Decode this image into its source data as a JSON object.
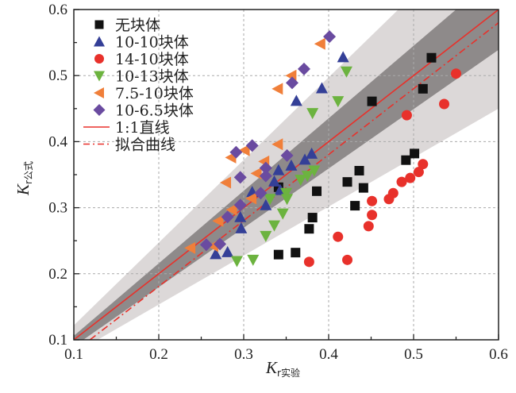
{
  "chart_data": {
    "type": "scatter",
    "title": "",
    "xlabel": "K",
    "xlabel_sub": "r实验",
    "ylabel": "K",
    "ylabel_sub": "r公式",
    "xlim": [
      0.1,
      0.6
    ],
    "ylim": [
      0.1,
      0.6
    ],
    "xticks": [
      "0.1",
      "0.2",
      "0.3",
      "0.4",
      "0.5",
      "0.6"
    ],
    "yticks": [
      "0.1",
      "0.2",
      "0.3",
      "0.4",
      "0.5",
      "0.6"
    ],
    "xtick_values": [
      0.1,
      0.2,
      0.3,
      0.4,
      0.5,
      0.6
    ],
    "ytick_values": [
      0.1,
      0.2,
      0.3,
      0.4,
      0.5,
      0.6
    ],
    "minor_tick_step": 0.05,
    "grid": true,
    "legend_position": "top-left",
    "bands": [
      {
        "name": "outer-band",
        "color": "#dcd8d8",
        "upper": [
          [
            0.1,
            0.122
          ],
          [
            0.482,
            0.6
          ]
        ],
        "lower": [
          [
            0.128,
            0.1
          ],
          [
            0.6,
            0.45
          ]
        ]
      },
      {
        "name": "inner-band",
        "color": "#8e8a8a",
        "upper": [
          [
            0.1,
            0.106
          ],
          [
            0.55,
            0.6
          ]
        ],
        "lower": [
          [
            0.1,
            0.09
          ],
          [
            0.6,
            0.539
          ]
        ]
      }
    ],
    "lines": [
      {
        "name": "1:1直线",
        "color": "#e8312b",
        "style": "solid",
        "points": [
          [
            0.1,
            0.1
          ],
          [
            0.6,
            0.6
          ]
        ]
      },
      {
        "name": "拟合曲线",
        "color": "#e8312b",
        "style": "dashdot",
        "points": [
          [
            0.119,
            0.1
          ],
          [
            0.6,
            0.58
          ]
        ]
      }
    ],
    "series": [
      {
        "name": "无块体",
        "marker": "square",
        "color": "#111111",
        "points": [
          [
            0.521,
            0.527
          ],
          [
            0.511,
            0.48
          ],
          [
            0.451,
            0.461
          ],
          [
            0.501,
            0.382
          ],
          [
            0.491,
            0.372
          ],
          [
            0.436,
            0.356
          ],
          [
            0.422,
            0.339
          ],
          [
            0.441,
            0.33
          ],
          [
            0.386,
            0.325
          ],
          [
            0.431,
            0.303
          ],
          [
            0.381,
            0.285
          ],
          [
            0.377,
            0.268
          ],
          [
            0.361,
            0.232
          ],
          [
            0.341,
            0.229
          ],
          [
            0.341,
            0.331
          ]
        ]
      },
      {
        "name": "10-10块体",
        "marker": "triangle-up",
        "color": "#343f97",
        "points": [
          [
            0.417,
            0.528
          ],
          [
            0.392,
            0.481
          ],
          [
            0.362,
            0.462
          ],
          [
            0.38,
            0.382
          ],
          [
            0.372,
            0.373
          ],
          [
            0.356,
            0.364
          ],
          [
            0.341,
            0.357
          ],
          [
            0.336,
            0.34
          ],
          [
            0.343,
            0.327
          ],
          [
            0.31,
            0.324
          ],
          [
            0.326,
            0.304
          ],
          [
            0.296,
            0.286
          ],
          [
            0.297,
            0.269
          ],
          [
            0.267,
            0.23
          ],
          [
            0.281,
            0.233
          ]
        ]
      },
      {
        "name": "14-10块体",
        "marker": "circle",
        "color": "#e8312b",
        "points": [
          [
            0.55,
            0.503
          ],
          [
            0.536,
            0.457
          ],
          [
            0.492,
            0.44
          ],
          [
            0.511,
            0.366
          ],
          [
            0.506,
            0.354
          ],
          [
            0.496,
            0.345
          ],
          [
            0.486,
            0.339
          ],
          [
            0.476,
            0.322
          ],
          [
            0.471,
            0.313
          ],
          [
            0.451,
            0.31
          ],
          [
            0.451,
            0.289
          ],
          [
            0.447,
            0.272
          ],
          [
            0.411,
            0.256
          ],
          [
            0.422,
            0.221
          ],
          [
            0.377,
            0.218
          ]
        ]
      },
      {
        "name": "10-13块体",
        "marker": "triangle-down",
        "color": "#6cb33f",
        "points": [
          [
            0.421,
            0.506
          ],
          [
            0.411,
            0.461
          ],
          [
            0.381,
            0.443
          ],
          [
            0.383,
            0.356
          ],
          [
            0.375,
            0.348
          ],
          [
            0.367,
            0.342
          ],
          [
            0.35,
            0.322
          ],
          [
            0.351,
            0.313
          ],
          [
            0.331,
            0.313
          ],
          [
            0.346,
            0.291
          ],
          [
            0.336,
            0.273
          ],
          [
            0.326,
            0.257
          ],
          [
            0.292,
            0.219
          ],
          [
            0.311,
            0.221
          ]
        ]
      },
      {
        "name": "7.5-10块体",
        "marker": "triangle-left",
        "color": "#f07f3a",
        "points": [
          [
            0.39,
            0.548
          ],
          [
            0.356,
            0.5
          ],
          [
            0.34,
            0.48
          ],
          [
            0.34,
            0.396
          ],
          [
            0.301,
            0.387
          ],
          [
            0.285,
            0.376
          ],
          [
            0.324,
            0.37
          ],
          [
            0.315,
            0.352
          ],
          [
            0.279,
            0.338
          ],
          [
            0.309,
            0.314
          ],
          [
            0.286,
            0.297
          ],
          [
            0.27,
            0.28
          ],
          [
            0.264,
            0.242
          ],
          [
            0.237,
            0.239
          ]
        ]
      },
      {
        "name": "10-6.5块体",
        "marker": "diamond",
        "color": "#6a4ba0",
        "points": [
          [
            0.401,
            0.559
          ],
          [
            0.371,
            0.51
          ],
          [
            0.357,
            0.489
          ],
          [
            0.351,
            0.379
          ],
          [
            0.31,
            0.394
          ],
          [
            0.291,
            0.384
          ],
          [
            0.326,
            0.36
          ],
          [
            0.296,
            0.346
          ],
          [
            0.326,
            0.348
          ],
          [
            0.32,
            0.322
          ],
          [
            0.296,
            0.304
          ],
          [
            0.281,
            0.286
          ],
          [
            0.272,
            0.245
          ],
          [
            0.256,
            0.244
          ]
        ]
      }
    ],
    "legend": [
      "无块体",
      "10-10块体",
      "14-10块体",
      "10-13块体",
      "7.5-10块体",
      "10-6.5块体",
      "1:1直线",
      "拟合曲线"
    ]
  }
}
